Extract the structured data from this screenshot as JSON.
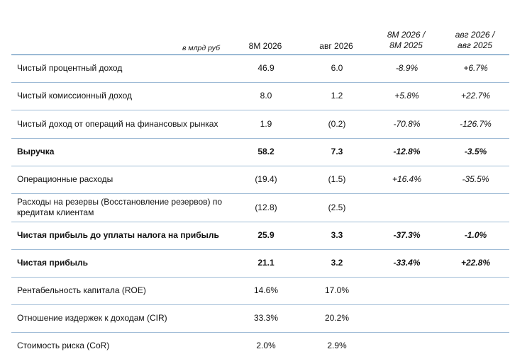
{
  "table": {
    "unit_label": "в млрд руб",
    "headers": {
      "col_8m": "8M 2026",
      "col_aug": "авг 2026",
      "col_yoy_8m": [
        "8M 2026 /",
        "8M 2025"
      ],
      "col_yoy_aug": [
        "авг 2026 /",
        "авг 2025"
      ]
    },
    "rows": [
      {
        "label": "Чистый процентный доход",
        "v8m": "46.9",
        "aug": "6.0",
        "yoy8m": "-8.9%",
        "yoyaug": "+6.7%",
        "bold": false
      },
      {
        "label": "Чистый комиссионный доход",
        "v8m": "8.0",
        "aug": "1.2",
        "yoy8m": "+5.8%",
        "yoyaug": "+22.7%",
        "bold": false
      },
      {
        "label": "Чистый доход от операций на финансовых рынках",
        "v8m": "1.9",
        "aug": "(0.2)",
        "yoy8m": "-70.8%",
        "yoyaug": "-126.7%",
        "bold": false
      },
      {
        "label": "Выручка",
        "v8m": "58.2",
        "aug": "7.3",
        "yoy8m": "-12.8%",
        "yoyaug": "-3.5%",
        "bold": true
      },
      {
        "label": "Операционные расходы",
        "v8m": "(19.4)",
        "aug": "(1.5)",
        "yoy8m": "+16.4%",
        "yoyaug": "-35.5%",
        "bold": false
      },
      {
        "label": "Расходы на резервы (Восстановление резервов) по кредитам клиентам",
        "v8m": "(12.8)",
        "aug": "(2.5)",
        "yoy8m": "",
        "yoyaug": "",
        "bold": false
      },
      {
        "label": "Чистая прибыль до уплаты налога на прибыль",
        "v8m": "25.9",
        "aug": "3.3",
        "yoy8m": "-37.3%",
        "yoyaug": "-1.0%",
        "bold": true
      },
      {
        "label": "Чистая прибыль",
        "v8m": "21.1",
        "aug": "3.2",
        "yoy8m": "-33.4%",
        "yoyaug": "+22.8%",
        "bold": true
      },
      {
        "label": "Рентабельность капитала (ROE)",
        "v8m": "14.6%",
        "aug": "17.0%",
        "yoy8m": "",
        "yoyaug": "",
        "bold": false
      },
      {
        "label": "Отношение издержек к доходам (CIR)",
        "v8m": "33.3%",
        "aug": "20.2%",
        "yoy8m": "",
        "yoyaug": "",
        "bold": false
      },
      {
        "label": "Стоимость риска (CoR)",
        "v8m": "2.0%",
        "aug": "2.9%",
        "yoy8m": "",
        "yoyaug": "",
        "bold": false
      }
    ]
  },
  "colors": {
    "header_rule": "#2e6ea6",
    "row_rule": "#9fbbd6"
  }
}
